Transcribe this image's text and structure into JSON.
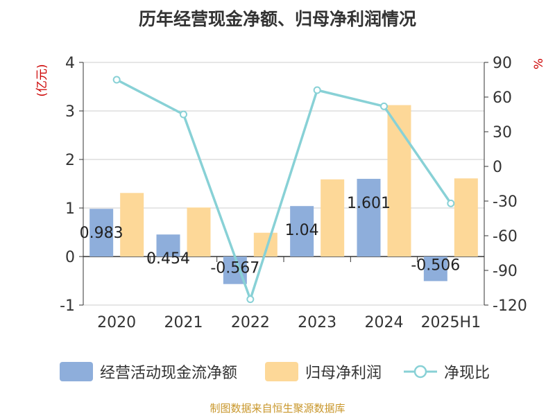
{
  "title": "历年经营现金净额、归母净利润情况",
  "source_note": "制图数据来自恒生聚源数据库",
  "chart_data": {
    "type": "bar",
    "categories": [
      "2020",
      "2021",
      "2022",
      "2023",
      "2024",
      "2025H1"
    ],
    "series": [
      {
        "name": "经营活动现金流净额",
        "kind": "bar",
        "axis": "left",
        "color": "#8eaedb",
        "values": [
          0.983,
          0.454,
          -0.567,
          1.04,
          1.601,
          -0.506
        ],
        "labels": [
          "0.983",
          "0.454",
          "-0.567",
          "1.04",
          "1.601",
          "-0.506"
        ]
      },
      {
        "name": "归母净利润",
        "kind": "bar",
        "axis": "left",
        "color": "#fdd898",
        "values": [
          1.31,
          1.01,
          0.49,
          1.59,
          3.12,
          1.61
        ]
      },
      {
        "name": "净现比",
        "kind": "line",
        "axis": "right",
        "color": "#88d1d6",
        "values": [
          75,
          45,
          -115,
          66,
          52,
          -32
        ]
      }
    ],
    "y_left": {
      "label": "(亿元)",
      "ylim": [
        -1,
        4
      ],
      "ticks": [
        "-1",
        "0",
        "1",
        "2",
        "3",
        "4"
      ]
    },
    "y_right": {
      "label": "%",
      "ylim": [
        -120,
        90
      ],
      "ticks": [
        "-120",
        "-90",
        "-60",
        "-30",
        "0",
        "30",
        "60",
        "90"
      ]
    },
    "grid": true,
    "legend_position": "bottom"
  }
}
